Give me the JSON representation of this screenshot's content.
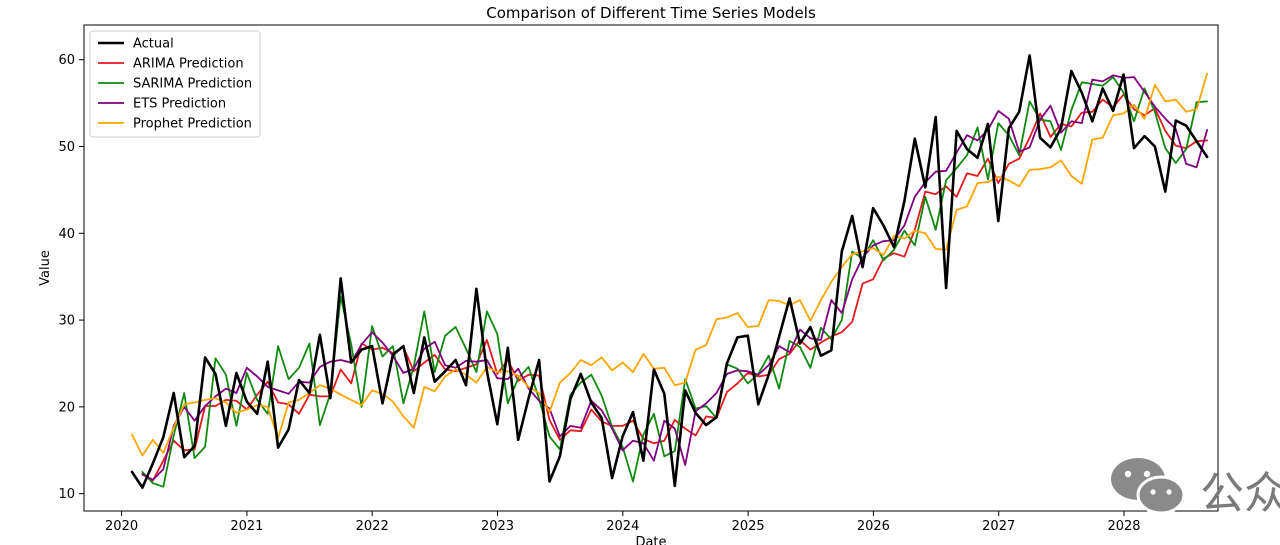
{
  "chart_data": {
    "type": "line",
    "title": "Comparison of Different Time Series Models",
    "xlabel": "Date",
    "ylabel": "Value",
    "xlim": [
      2019.7,
      2028.75
    ],
    "ylim": [
      8,
      64
    ],
    "x_ticks": [
      2020,
      2021,
      2022,
      2023,
      2024,
      2025,
      2026,
      2027,
      2028
    ],
    "x_tick_labels": [
      "2020",
      "2021",
      "2022",
      "2023",
      "2024",
      "2025",
      "2026",
      "2027",
      "2028"
    ],
    "y_ticks": [
      10,
      20,
      30,
      40,
      50,
      60
    ],
    "y_tick_labels": [
      "10",
      "20",
      "30",
      "40",
      "50",
      "60"
    ],
    "grid": false,
    "legend_position": "top-left",
    "x_start": 2020.083,
    "x_step": 0.0833,
    "series": [
      {
        "name": "Actual",
        "color": "#000000",
        "width": 2.6,
        "values": [
          12.5,
          10.7,
          13.5,
          16.5,
          21.6,
          14.2,
          15.5,
          25.7,
          23.8,
          17.8,
          23.9,
          20.6,
          19.2,
          25.2,
          15.3,
          17.4,
          23.1,
          21.6,
          28.3,
          21.0,
          34.8,
          25.1,
          26.6,
          27.0,
          20.4,
          26.0,
          27.0,
          21.6,
          28.0,
          22.9,
          24.1,
          25.4,
          22.5,
          33.6,
          24.1,
          18.0,
          26.8,
          16.2,
          21.0,
          25.4,
          11.4,
          14.3,
          20.9,
          23.8,
          20.5,
          18.7,
          11.8,
          16.6,
          19.4,
          13.8,
          24.3,
          21.5,
          10.9,
          21.9,
          19.3,
          17.9,
          18.8,
          25.0,
          28.0,
          28.2,
          20.3,
          23.7,
          28.1,
          32.5,
          27.3,
          29.2,
          25.9,
          26.5,
          37.9,
          42.0,
          36.1,
          42.9,
          40.9,
          38.4,
          43.7,
          50.9,
          45.3,
          53.4,
          33.7,
          51.8,
          49.7,
          48.7,
          52.6,
          41.4,
          52.1,
          54.0,
          60.5,
          51.0,
          49.9,
          52.1,
          58.7,
          56.2,
          52.9,
          56.7,
          54.1,
          58.3,
          49.8,
          51.2,
          50.0,
          44.8,
          53.0,
          52.4,
          50.6,
          48.8
        ]
      },
      {
        "name": "ARIMA Prediction",
        "color": "#e41a1c",
        "width": 1.8,
        "values": [
          null,
          12.3,
          11.5,
          13.8,
          16.1,
          15.0,
          15.1,
          20.1,
          20.1,
          20.8,
          20.7,
          19.7,
          21.4,
          22.9,
          20.5,
          20.3,
          19.2,
          21.4,
          21.2,
          21.2,
          24.3,
          22.7,
          27.3,
          26.6,
          26.8,
          26.2,
          26.9,
          24.1,
          25.1,
          26.0,
          24.3,
          24.1,
          24.5,
          24.9,
          27.7,
          23.8,
          25.4,
          23.0,
          23.7,
          23.6,
          18.5,
          16.2,
          17.3,
          17.2,
          19.7,
          18.3,
          17.8,
          17.8,
          18.4,
          16.3,
          15.8,
          16.1,
          18.5,
          17.5,
          16.7,
          18.9,
          18.7,
          21.7,
          22.7,
          23.9,
          23.5,
          23.7,
          25.5,
          26.1,
          27.7,
          26.6,
          27.4,
          28.1,
          28.6,
          29.8,
          34.2,
          34.7,
          37.1,
          37.7,
          37.3,
          40.4,
          44.8,
          44.5,
          45.4,
          44.2,
          46.9,
          46.6,
          48.6,
          45.8,
          48.0,
          48.6,
          51.0,
          53.8,
          51.1,
          52.6,
          52.3,
          53.9,
          54.0,
          55.4,
          54.5,
          56.0,
          54.3,
          53.6,
          54.4,
          51.8,
          50.1,
          49.8,
          50.6,
          50.7
        ]
      },
      {
        "name": "SARIMA Prediction",
        "color": "#0f8a0f",
        "width": 1.8,
        "values": [
          null,
          12.5,
          11.2,
          10.8,
          16.7,
          21.6,
          14.1,
          15.4,
          25.6,
          23.7,
          17.8,
          23.9,
          20.8,
          19.2,
          27.0,
          23.2,
          24.5,
          27.3,
          17.9,
          21.5,
          32.7,
          27.2,
          20.0,
          29.3,
          25.8,
          27.0,
          20.4,
          24.7,
          31.0,
          24.0,
          28.2,
          29.2,
          26.7,
          24.0,
          31.0,
          28.4,
          20.4,
          23.3,
          24.6,
          20.9,
          16.6,
          15.1,
          21.4,
          22.8,
          23.7,
          21.3,
          17.7,
          15.4,
          11.4,
          16.8,
          19.2,
          14.3,
          14.9,
          23.2,
          19.8,
          20.1,
          18.7,
          24.9,
          24.4,
          22.7,
          23.8,
          25.9,
          22.1,
          27.6,
          26.9,
          24.5,
          29.1,
          27.8,
          30.0,
          37.9,
          37.1,
          39.2,
          36.9,
          38.1,
          40.3,
          38.6,
          44.2,
          40.4,
          46.1,
          47.5,
          49.0,
          52.2,
          46.2,
          52.7,
          51.3,
          49.0,
          55.2,
          53.1,
          52.9,
          49.6,
          54.2,
          57.4,
          57.2,
          57.0,
          58.0,
          56.2,
          52.9,
          56.7,
          54.0,
          49.8,
          48.1,
          49.7,
          55.1,
          55.2
        ]
      },
      {
        "name": "ETS Prediction",
        "color": "#800080",
        "width": 1.8,
        "values": [
          null,
          12.2,
          11.6,
          12.8,
          17.8,
          20.0,
          18.4,
          20.1,
          21.2,
          22.1,
          21.6,
          24.5,
          23.5,
          22.3,
          21.9,
          21.5,
          22.9,
          22.8,
          24.6,
          25.2,
          25.4,
          25.1,
          27.2,
          28.6,
          27.4,
          25.9,
          23.9,
          24.4,
          26.7,
          27.5,
          24.8,
          24.5,
          25.3,
          25.2,
          25.4,
          23.3,
          23.2,
          24.4,
          22.1,
          20.7,
          19.8,
          16.6,
          17.8,
          17.6,
          20.7,
          19.6,
          17.5,
          15.0,
          16.1,
          15.8,
          13.8,
          18.4,
          17.5,
          13.3,
          19.5,
          20.4,
          21.6,
          23.8,
          24.2,
          24.1,
          23.7,
          24.8,
          27.0,
          26.3,
          28.9,
          27.9,
          27.7,
          32.3,
          30.8,
          34.7,
          37.2,
          38.6,
          39.1,
          39.2,
          40.9,
          44.2,
          45.9,
          47.1,
          47.2,
          49.3,
          51.3,
          50.7,
          51.9,
          54.1,
          53.2,
          49.4,
          49.9,
          53.1,
          54.7,
          51.6,
          52.9,
          52.7,
          57.7,
          57.5,
          58.2,
          57.9,
          58.0,
          56.3,
          54.6,
          53.2,
          52.0,
          48.0,
          47.6,
          51.9
        ]
      },
      {
        "name": "Prophet Prediction",
        "color": "#ffa500",
        "width": 1.8,
        "values": [
          16.8,
          14.4,
          16.2,
          14.7,
          17.6,
          20.3,
          20.5,
          20.8,
          21.0,
          20.5,
          19.3,
          19.7,
          20.2,
          20.0,
          16.4,
          20.5,
          20.8,
          21.6,
          22.5,
          22.1,
          21.4,
          20.8,
          20.2,
          21.9,
          21.5,
          20.6,
          18.9,
          17.6,
          22.3,
          21.8,
          23.5,
          24.3,
          23.7,
          22.8,
          24.6,
          24.0,
          24.1,
          23.6,
          22.3,
          21.6,
          19.4,
          22.8,
          23.9,
          25.4,
          24.8,
          25.7,
          24.2,
          25.1,
          24.0,
          26.1,
          24.4,
          24.5,
          22.5,
          22.8,
          26.6,
          27.1,
          30.1,
          30.3,
          30.8,
          29.2,
          29.3,
          32.3,
          32.2,
          31.7,
          32.3,
          29.9,
          32.3,
          34.4,
          36.1,
          37.6,
          37.9,
          38.3,
          37.5,
          39.7,
          39.4,
          40.3,
          40.0,
          38.2,
          38.1,
          42.7,
          43.1,
          45.8,
          45.9,
          46.5,
          46.1,
          45.4,
          47.3,
          47.4,
          47.6,
          48.4,
          46.6,
          45.7,
          50.8,
          51.0,
          53.6,
          53.8,
          54.8,
          53.2,
          57.1,
          55.2,
          55.4,
          54.0,
          54.3,
          58.4
        ]
      }
    ]
  },
  "watermark": {
    "text": "公众"
  }
}
